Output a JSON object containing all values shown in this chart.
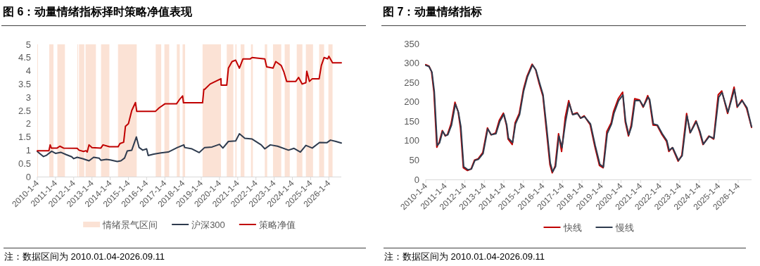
{
  "chart_data": [
    {
      "type": "line",
      "title": "图 6：动量情绪指标择时策略净值表现",
      "legend": "bottom",
      "annotations": [
        "注：数据区间为 2010.01.04-2026.09.11"
      ],
      "xlim": [
        "2010-01-04",
        "2026-09-11"
      ],
      "ylim": [
        0,
        5
      ],
      "yticks": [
        0,
        0.5,
        1,
        1.5,
        2,
        2.5,
        3,
        3.5,
        4,
        4.5,
        5
      ],
      "xticks": [
        {
          "value": "2010-01-04",
          "label": "2010-1-4"
        },
        {
          "value": "2011-01-04",
          "label": "2011-1-4"
        },
        {
          "value": "2012-01-04",
          "label": "2012-1-4"
        },
        {
          "value": "2013-01-04",
          "label": "2013-1-4"
        },
        {
          "value": "2014-01-04",
          "label": "2014-1-4"
        },
        {
          "value": "2015-01-04",
          "label": "2015-1-4"
        },
        {
          "value": "2016-01-04",
          "label": "2016-1-4"
        },
        {
          "value": "2017-01-04",
          "label": "2017-1-4"
        },
        {
          "value": "2018-01-04",
          "label": "2018-1-4"
        },
        {
          "value": "2019-01-04",
          "label": "2019-1-4"
        },
        {
          "value": "2020-01-04",
          "label": "2020-1-4"
        },
        {
          "value": "2021-01-04",
          "label": "2021-1-4"
        },
        {
          "value": "2022-01-04",
          "label": "2022-1-4"
        },
        {
          "value": "2023-01-04",
          "label": "2023-1-4"
        },
        {
          "value": "2024-01-04",
          "label": "2024-1-4"
        },
        {
          "value": "2025-01-04",
          "label": "2025-1-4"
        },
        {
          "value": "2026-01-04",
          "label": "2026-1-4"
        }
      ],
      "bands": [
        {
          "axis": "x",
          "from": "2010-01-04",
          "to": "2010-01-12",
          "label": "情绪景气区间",
          "color": "#fbe2d5"
        },
        {
          "axis": "x",
          "from": "2010-09-01",
          "to": "2010-11-24",
          "color": "#fbe2d5"
        },
        {
          "axis": "x",
          "from": "2011-02-10",
          "to": "2011-07-12",
          "color": "#fbe2d5"
        },
        {
          "axis": "x",
          "from": "2012-03-17",
          "to": "2012-04-01",
          "color": "#fbe2d5"
        },
        {
          "axis": "x",
          "from": "2012-04-19",
          "to": "2012-08-03",
          "color": "#fbe2d5"
        },
        {
          "axis": "x",
          "from": "2012-08-28",
          "to": "2013-03-24",
          "color": "#fbe2d5"
        },
        {
          "axis": "x",
          "from": "2013-07-05",
          "to": "2013-12-19",
          "color": "#fbe2d5"
        },
        {
          "axis": "x",
          "from": "2014-06-10",
          "to": "2015-06-20",
          "color": "#fbe2d5"
        },
        {
          "axis": "x",
          "from": "2016-07-05",
          "to": "2016-10-23",
          "color": "#fbe2d5"
        },
        {
          "axis": "x",
          "from": "2016-12-26",
          "to": "2017-04-01",
          "color": "#fbe2d5"
        },
        {
          "axis": "x",
          "from": "2017-09-01",
          "to": "2017-10-30",
          "color": "#fbe2d5"
        },
        {
          "axis": "x",
          "from": "2017-12-26",
          "to": "2018-02-14",
          "color": "#fbe2d5"
        },
        {
          "axis": "x",
          "from": "2019-01-30",
          "to": "2020-02-03",
          "color": "#fbe2d5"
        },
        {
          "axis": "x",
          "from": "2020-05-29",
          "to": "2020-10-08",
          "color": "#fbe2d5"
        },
        {
          "axis": "x",
          "from": "2020-11-17",
          "to": "2020-12-12",
          "color": "#fbe2d5"
        },
        {
          "axis": "x",
          "from": "2021-03-03",
          "to": "2021-05-18",
          "color": "#fbe2d5"
        },
        {
          "axis": "x",
          "from": "2021-09-27",
          "to": "2021-11-03",
          "color": "#fbe2d5"
        },
        {
          "axis": "x",
          "from": "2022-07-01",
          "to": "2022-08-17",
          "color": "#fbe2d5"
        },
        {
          "axis": "x",
          "from": "2022-12-12",
          "to": "2023-05-26",
          "color": "#fbe2d5"
        },
        {
          "axis": "x",
          "from": "2023-08-03",
          "to": "2023-11-13",
          "color": "#fbe2d5"
        },
        {
          "axis": "x",
          "from": "2024-04-01",
          "to": "2024-07-23",
          "color": "#fbe2d5"
        },
        {
          "axis": "x",
          "from": "2024-10-01",
          "to": "2025-02-21",
          "color": "#fbe2d5"
        },
        {
          "axis": "x",
          "from": "2025-06-24",
          "to": "2025-10-01",
          "color": "#fbe2d5"
        },
        {
          "axis": "x",
          "from": "2025-12-26",
          "to": "2026-03-20",
          "color": "#fbe2d5"
        }
      ],
      "series": [
        {
          "name": "沪深300",
          "color": "#2e3b4e",
          "x": [
            "2010-01-04",
            "2010-02-06",
            "2010-05-08",
            "2010-07-01",
            "2010-10-19",
            "2011-01-04",
            "2011-04-19",
            "2011-08-07",
            "2011-11-24",
            "2012-01-04",
            "2012-03-13",
            "2012-07-01",
            "2012-11-06",
            "2013-02-06",
            "2013-05-26",
            "2013-07-01",
            "2013-10-19",
            "2014-01-04",
            "2014-05-26",
            "2014-08-07",
            "2014-10-19",
            "2014-12-12",
            "2015-03-13",
            "2015-06-13",
            "2015-08-07",
            "2015-10-19",
            "2016-01-04",
            "2016-02-06",
            "2016-05-26",
            "2016-10-19",
            "2017-03-13",
            "2017-09-12",
            "2018-01-19",
            "2018-02-06",
            "2018-07-01",
            "2018-11-24",
            "2019-03-13",
            "2019-08-07",
            "2020-01-04",
            "2020-03-13",
            "2020-07-01",
            "2020-11-24",
            "2021-02-06",
            "2021-05-26",
            "2021-10-19",
            "2022-04-19",
            "2022-07-01",
            "2022-10-19",
            "2023-03-13",
            "2023-10-19",
            "2024-02-06",
            "2024-06-13",
            "2024-10-01",
            "2025-02-06",
            "2025-07-01",
            "2025-11-24",
            "2026-02-06",
            "2026-05-26",
            "2026-09-11"
          ],
          "values": [
            0.95,
            0.9,
            0.76,
            0.8,
            0.96,
            0.88,
            0.92,
            0.83,
            0.75,
            0.68,
            0.73,
            0.68,
            0.6,
            0.73,
            0.7,
            0.62,
            0.65,
            0.63,
            0.57,
            0.6,
            0.7,
            0.97,
            1.0,
            1.5,
            1.1,
            1.0,
            1.05,
            0.8,
            0.85,
            0.9,
            0.93,
            1.1,
            1.2,
            1.1,
            1.05,
            0.91,
            1.1,
            1.12,
            1.22,
            1.08,
            1.33,
            1.35,
            1.62,
            1.45,
            1.42,
            1.2,
            1.05,
            1.2,
            1.15,
            1.0,
            1.07,
            0.93,
            1.18,
            1.08,
            1.29,
            1.28,
            1.38,
            1.33,
            1.27
          ]
        },
        {
          "name": "策略净值",
          "color": "#c00000",
          "x": [
            "2010-01-04",
            "2010-08-25",
            "2010-09-19",
            "2010-10-12",
            "2011-02-06",
            "2011-04-01",
            "2011-06-13",
            "2012-03-13",
            "2012-04-19",
            "2012-07-19",
            "2012-09-05",
            "2012-10-01",
            "2012-11-06",
            "2013-01-04",
            "2013-07-01",
            "2013-08-14",
            "2013-12-19",
            "2014-06-13",
            "2014-07-19",
            "2014-10-01",
            "2014-11-06",
            "2015-01-05",
            "2015-03-13",
            "2015-05-26",
            "2015-06-20",
            "2016-07-01",
            "2016-09-12",
            "2017-01-04",
            "2017-08-25",
            "2017-10-19",
            "2017-12-26",
            "2018-01-12",
            "2019-01-30",
            "2019-02-25",
            "2019-03-13",
            "2019-07-01",
            "2020-02-03",
            "2020-02-06",
            "2020-05-29",
            "2020-07-01",
            "2020-09-12",
            "2020-11-24",
            "2021-02-06",
            "2021-04-19",
            "2021-09-12",
            "2021-10-19",
            "2022-07-01",
            "2022-08-07",
            "2022-12-12",
            "2023-02-06",
            "2023-05-26",
            "2023-07-19",
            "2023-09-12",
            "2024-03-13",
            "2024-05-08",
            "2024-07-19",
            "2024-10-01",
            "2024-10-19",
            "2024-12-12",
            "2025-02-06",
            "2025-06-24",
            "2025-08-07",
            "2025-10-01",
            "2025-12-12",
            "2026-01-05",
            "2026-03-20",
            "2026-09-11"
          ],
          "values": [
            0.98,
            0.98,
            1.2,
            1.08,
            1.08,
            1.15,
            1.08,
            1.07,
            1.0,
            0.95,
            0.98,
            0.93,
            1.2,
            1.1,
            1.08,
            1.2,
            1.13,
            1.13,
            1.25,
            1.3,
            1.9,
            2.0,
            2.5,
            2.8,
            2.47,
            2.47,
            2.6,
            2.75,
            2.75,
            2.9,
            3.05,
            2.79,
            2.79,
            3.3,
            3.3,
            3.5,
            3.7,
            3.46,
            3.46,
            4.1,
            4.35,
            4.4,
            4.1,
            4.45,
            4.45,
            4.5,
            4.45,
            4.15,
            4.1,
            4.35,
            4.2,
            3.95,
            3.6,
            3.6,
            3.75,
            3.5,
            3.55,
            3.98,
            3.6,
            3.7,
            3.7,
            4.2,
            4.5,
            4.45,
            4.55,
            4.3,
            4.3
          ]
        }
      ]
    },
    {
      "type": "line",
      "title": "图 7：动量情绪指标",
      "legend": "bottom",
      "annotations": [
        "注：数据区间为 2010.01.04-2026.09.11"
      ],
      "xlim": [
        "2010-01-04",
        "2026-09-11"
      ],
      "ylim": [
        0,
        350
      ],
      "yticks": [
        0,
        50,
        100,
        150,
        200,
        250,
        300,
        350
      ],
      "xticks": [
        {
          "value": "2010-01-04",
          "label": "2010-1-4"
        },
        {
          "value": "2011-01-04",
          "label": "2011-1-4"
        },
        {
          "value": "2012-01-04",
          "label": "2012-1-4"
        },
        {
          "value": "2013-01-04",
          "label": "2013-1-4"
        },
        {
          "value": "2014-01-04",
          "label": "2014-1-4"
        },
        {
          "value": "2015-01-04",
          "label": "2015-1-4"
        },
        {
          "value": "2016-01-04",
          "label": "2016-1-4"
        },
        {
          "value": "2017-01-04",
          "label": "2017-1-4"
        },
        {
          "value": "2018-01-04",
          "label": "2018-1-4"
        },
        {
          "value": "2019-01-04",
          "label": "2019-1-4"
        },
        {
          "value": "2020-01-04",
          "label": "2020-1-4"
        },
        {
          "value": "2021-01-04",
          "label": "2021-1-4"
        },
        {
          "value": "2022-01-04",
          "label": "2022-1-4"
        },
        {
          "value": "2023-01-04",
          "label": "2023-1-4"
        },
        {
          "value": "2024-01-04",
          "label": "2024-1-4"
        },
        {
          "value": "2025-01-04",
          "label": "2025-1-4"
        },
        {
          "value": "2026-01-04",
          "label": "2026-1-4"
        }
      ],
      "series": [
        {
          "name": "快线",
          "color": "#c00000",
          "x": [
            "2010-01-04",
            "2010-03-06",
            "2010-04-22",
            "2010-06-06",
            "2010-07-30",
            "2010-09-12",
            "2010-11-10",
            "2011-01-04",
            "2011-02-14",
            "2011-04-22",
            "2011-07-05",
            "2011-09-01",
            "2011-10-15",
            "2011-12-08",
            "2012-02-25",
            "2012-05-01",
            "2012-07-05",
            "2012-09-08",
            "2012-12-05",
            "2013-03-03",
            "2013-05-08",
            "2013-08-03",
            "2013-10-12",
            "2013-12-26",
            "2014-02-21",
            "2014-03-24",
            "2014-06-10",
            "2014-08-03",
            "2014-10-19",
            "2015-01-05",
            "2015-03-13",
            "2015-06-17",
            "2015-08-21",
            "2015-10-26",
            "2016-01-04",
            "2016-03-06",
            "2016-05-15",
            "2016-06-27",
            "2016-08-21",
            "2016-10-23",
            "2016-12-19",
            "2017-02-25",
            "2017-05-01",
            "2017-07-08",
            "2017-10-05",
            "2017-12-08",
            "2018-02-14",
            "2018-06-06",
            "2018-09-01",
            "2018-11-27",
            "2019-02-03",
            "2019-04-15",
            "2019-07-05",
            "2019-08-17",
            "2019-11-13",
            "2020-02-03",
            "2020-03-24",
            "2020-05-22",
            "2020-07-12",
            "2020-09-16",
            "2020-12-15",
            "2021-02-21",
            "2021-05-18",
            "2021-06-17",
            "2021-08-25",
            "2021-11-10",
            "2022-02-06",
            "2022-05-04",
            "2022-06-17",
            "2022-08-21",
            "2022-12-08",
            "2023-02-14",
            "2023-05-15",
            "2023-07-19",
            "2023-11-06",
            "2024-01-12",
            "2024-03-17",
            "2024-07-05",
            "2024-10-01",
            "2024-12-26",
            "2025-03-03",
            "2025-06-20",
            "2025-10-19",
            "2025-12-15",
            "2026-03-13",
            "2026-06-10",
            "2026-09-11"
          ],
          "values": [
            296,
            292,
            278,
            225,
            83,
            96,
            126,
            112,
            116,
            143,
            199,
            175,
            133,
            30,
            23,
            27,
            50,
            53,
            69,
            133,
            115,
            120,
            153,
            171,
            140,
            104,
            90,
            146,
            170,
            232,
            266,
            297,
            283,
            247,
            215,
            132,
            38,
            17,
            35,
            118,
            72,
            160,
            203,
            168,
            172,
            158,
            164,
            141,
            85,
            36,
            30,
            124,
            146,
            175,
            208,
            225,
            148,
            112,
            140,
            208,
            205,
            186,
            216,
            205,
            140,
            139,
            116,
            98,
            72,
            82,
            47,
            62,
            170,
            120,
            151,
            123,
            90,
            112,
            104,
            218,
            228,
            170,
            238,
            186,
            205,
            183,
            134
          ]
        },
        {
          "name": "慢线",
          "color": "#2e3b4e",
          "x": [
            "2010-01-04",
            "2010-03-06",
            "2010-05-01",
            "2010-06-13",
            "2010-08-07",
            "2010-09-19",
            "2010-11-17",
            "2011-01-08",
            "2011-02-21",
            "2011-05-01",
            "2011-07-12",
            "2011-09-08",
            "2011-10-23",
            "2011-12-15",
            "2012-03-03",
            "2012-05-08",
            "2012-07-12",
            "2012-09-16",
            "2012-12-12",
            "2013-03-09",
            "2013-05-15",
            "2013-08-10",
            "2013-10-19",
            "2014-01-05",
            "2014-02-28",
            "2014-04-01",
            "2014-06-17",
            "2014-08-10",
            "2014-10-26",
            "2015-01-08",
            "2015-03-20",
            "2015-06-24",
            "2015-08-28",
            "2015-11-03",
            "2016-01-08",
            "2016-03-13",
            "2016-05-22",
            "2016-07-05",
            "2016-08-28",
            "2016-10-30",
            "2016-12-26",
            "2017-03-03",
            "2017-05-08",
            "2017-07-16",
            "2017-10-12",
            "2017-12-15",
            "2018-02-21",
            "2018-06-13",
            "2018-09-08",
            "2018-12-05",
            "2019-02-10",
            "2019-04-22",
            "2019-07-12",
            "2019-08-25",
            "2019-11-20",
            "2020-02-10",
            "2020-04-01",
            "2020-05-29",
            "2020-07-19",
            "2020-09-23",
            "2020-12-23",
            "2021-02-28",
            "2021-05-26",
            "2021-06-24",
            "2021-09-01",
            "2021-11-17",
            "2022-02-14",
            "2022-05-11",
            "2022-06-24",
            "2022-08-28",
            "2022-12-15",
            "2023-02-21",
            "2023-05-22",
            "2023-07-26",
            "2023-11-13",
            "2024-01-19",
            "2024-03-24",
            "2024-07-12",
            "2024-10-08",
            "2025-01-05",
            "2025-03-09",
            "2025-06-27",
            "2025-10-26",
            "2025-12-23",
            "2026-03-20",
            "2026-06-17",
            "2026-09-11"
          ],
          "values": [
            294,
            291,
            276,
            227,
            88,
            94,
            124,
            113,
            115,
            140,
            194,
            173,
            136,
            33,
            25,
            27,
            49,
            52,
            67,
            130,
            115,
            118,
            149,
            168,
            140,
            106,
            95,
            143,
            167,
            227,
            264,
            295,
            282,
            249,
            218,
            136,
            42,
            20,
            33,
            112,
            82,
            149,
            197,
            167,
            170,
            158,
            162,
            143,
            88,
            39,
            32,
            118,
            143,
            170,
            203,
            218,
            149,
            115,
            136,
            203,
            203,
            188,
            212,
            206,
            143,
            140,
            118,
            100,
            75,
            82,
            49,
            61,
            164,
            121,
            149,
            124,
            91,
            111,
            106,
            212,
            224,
            173,
            232,
            188,
            203,
            185,
            136
          ]
        }
      ]
    }
  ]
}
